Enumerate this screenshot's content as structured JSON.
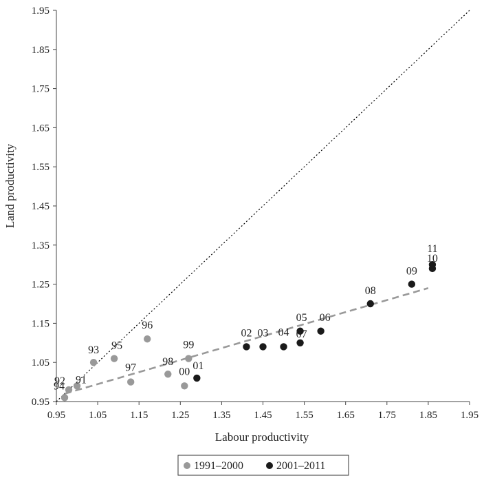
{
  "chart_data": {
    "type": "scatter",
    "xlabel": "Labour productivity",
    "ylabel": "Land productivity",
    "xlim": [
      0.95,
      1.95
    ],
    "ylim": [
      0.95,
      1.95
    ],
    "xticks": [
      "0.95",
      "1.05",
      "1.15",
      "1.25",
      "1.35",
      "1.45",
      "1.55",
      "1.65",
      "1.75",
      "1.85",
      "1.95"
    ],
    "yticks": [
      "0.95",
      "1.05",
      "1.15",
      "1.25",
      "1.35",
      "1.45",
      "1.55",
      "1.65",
      "1.75",
      "1.85",
      "1.95"
    ],
    "grid": false,
    "legend_position": "bottom",
    "series": [
      {
        "name": "1991–2000",
        "color": "#999999",
        "points": [
          {
            "label": "91",
            "x": 1.0,
            "y": 0.99
          },
          {
            "label": "92",
            "x": 0.98,
            "y": 0.98
          },
          {
            "label": "93",
            "x": 1.04,
            "y": 1.05
          },
          {
            "label": "94",
            "x": 0.97,
            "y": 0.96
          },
          {
            "label": "95",
            "x": 1.09,
            "y": 1.06
          },
          {
            "label": "96",
            "x": 1.17,
            "y": 1.11
          },
          {
            "label": "97",
            "x": 1.13,
            "y": 1.0
          },
          {
            "label": "98",
            "x": 1.22,
            "y": 1.02
          },
          {
            "label": "99",
            "x": 1.27,
            "y": 1.06
          },
          {
            "label": "00",
            "x": 1.26,
            "y": 0.99
          }
        ]
      },
      {
        "name": "2001–2011",
        "color": "#1a1a1a",
        "points": [
          {
            "label": "01",
            "x": 1.29,
            "y": 1.01
          },
          {
            "label": "02",
            "x": 1.41,
            "y": 1.09
          },
          {
            "label": "03",
            "x": 1.45,
            "y": 1.09
          },
          {
            "label": "04",
            "x": 1.5,
            "y": 1.09
          },
          {
            "label": "05",
            "x": 1.54,
            "y": 1.13
          },
          {
            "label": "07",
            "x": 1.54,
            "y": 1.1
          },
          {
            "label": "06",
            "x": 1.59,
            "y": 1.13
          },
          {
            "label": "08",
            "x": 1.71,
            "y": 1.2
          },
          {
            "label": "09",
            "x": 1.81,
            "y": 1.25
          },
          {
            "label": "11",
            "x": 1.86,
            "y": 1.3
          },
          {
            "label": "10",
            "x": 1.86,
            "y": 1.29
          }
        ]
      }
    ],
    "reference_lines": [
      {
        "name": "45-degree line",
        "style": "dotted",
        "color": "#000000",
        "x": [
          0.95,
          1.95
        ],
        "y": [
          0.95,
          1.95
        ]
      },
      {
        "name": "trend line",
        "style": "dashed",
        "color": "#999999",
        "x": [
          0.97,
          1.85
        ],
        "y": [
          0.97,
          1.24
        ]
      }
    ]
  }
}
